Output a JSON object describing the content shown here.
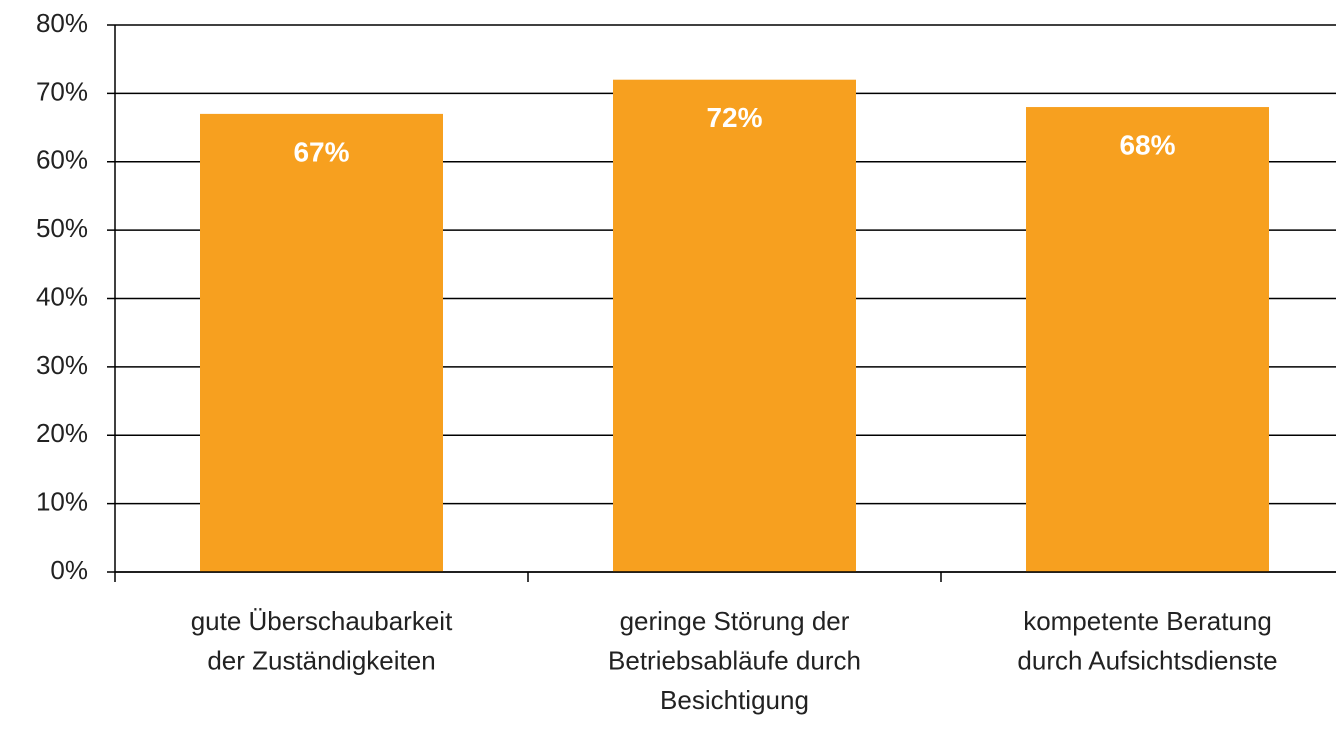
{
  "chart_data": {
    "type": "bar",
    "categories": [
      "gute Überschaubarkeit\nder Zuständigkeiten",
      "geringe Störung der\nBetriebsabläufe durch\nBesichtigung",
      "kompetente Beratung\ndurch Aufsichtsdienste"
    ],
    "values": [
      67,
      72,
      68
    ],
    "value_labels": [
      "67%",
      "72%",
      "68%"
    ],
    "color": "#f7a01f",
    "ylim": [
      0,
      80
    ],
    "yticks": [
      {
        "value": 0,
        "label": "0%"
      },
      {
        "value": 10,
        "label": "10%"
      },
      {
        "value": 20,
        "label": "20%"
      },
      {
        "value": 30,
        "label": "30%"
      },
      {
        "value": 40,
        "label": "40%"
      },
      {
        "value": 50,
        "label": "50%"
      },
      {
        "value": 60,
        "label": "60%"
      },
      {
        "value": 70,
        "label": "70%"
      },
      {
        "value": 80,
        "label": "80%"
      }
    ],
    "grid": true
  }
}
